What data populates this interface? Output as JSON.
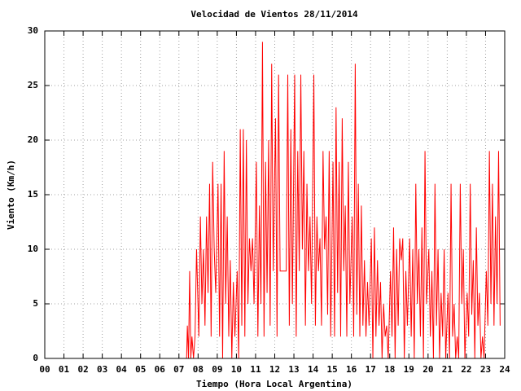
{
  "chart_data": {
    "type": "line",
    "title": "Velocidad de Vientos 28/11/2014",
    "xlabel": "Tiempo (Hora Local Argentina)",
    "ylabel": "Viento (Km/h)",
    "xlim": [
      0,
      24
    ],
    "ylim": [
      0,
      30
    ],
    "xticks": [
      {
        "value": 0,
        "label": "00"
      },
      {
        "value": 1,
        "label": "01"
      },
      {
        "value": 2,
        "label": "02"
      },
      {
        "value": 3,
        "label": "03"
      },
      {
        "value": 4,
        "label": "04"
      },
      {
        "value": 5,
        "label": "05"
      },
      {
        "value": 6,
        "label": "06"
      },
      {
        "value": 7,
        "label": "07"
      },
      {
        "value": 8,
        "label": "08"
      },
      {
        "value": 9,
        "label": "09"
      },
      10,
      11,
      12,
      13,
      14,
      15,
      16,
      17,
      18,
      19,
      20,
      21,
      22,
      23,
      24
    ],
    "yticks": [
      0,
      5,
      10,
      15,
      20,
      25,
      30
    ],
    "grid": true,
    "color": "#ff0000",
    "x": [
      0,
      7.4,
      7.44,
      7.5,
      7.56,
      7.62,
      7.68,
      7.76,
      7.84,
      7.92,
      8.04,
      8.12,
      8.2,
      8.28,
      8.36,
      8.44,
      8.52,
      8.6,
      8.68,
      8.76,
      8.84,
      8.92,
      9.04,
      9.12,
      9.2,
      9.28,
      9.36,
      9.44,
      9.52,
      9.6,
      9.68,
      9.76,
      9.84,
      9.92,
      10.04,
      10.12,
      10.2,
      10.28,
      10.36,
      10.44,
      10.52,
      10.6,
      10.68,
      10.76,
      10.84,
      10.92,
      11.04,
      11.12,
      11.2,
      11.28,
      11.36,
      11.44,
      11.52,
      11.6,
      11.68,
      11.76,
      11.84,
      11.92,
      12.04,
      12.12,
      12.2,
      12.28,
      12.36,
      12.44,
      12.52,
      12.6,
      12.68,
      12.76,
      12.84,
      12.92,
      13.04,
      13.12,
      13.2,
      13.28,
      13.36,
      13.44,
      13.52,
      13.6,
      13.68,
      13.76,
      13.84,
      13.92,
      14.04,
      14.12,
      14.2,
      14.28,
      14.36,
      14.44,
      14.52,
      14.6,
      14.68,
      14.76,
      14.84,
      14.92,
      15.04,
      15.12,
      15.2,
      15.28,
      15.36,
      15.44,
      15.52,
      15.6,
      15.68,
      15.76,
      15.84,
      15.92,
      16.04,
      16.12,
      16.2,
      16.28,
      16.36,
      16.44,
      16.52,
      16.6,
      16.68,
      16.76,
      16.84,
      16.92,
      17.04,
      17.12,
      17.2,
      17.28,
      17.36,
      17.44,
      17.52,
      17.6,
      17.68,
      17.76,
      17.84,
      17.92,
      18.04,
      18.12,
      18.2,
      18.28,
      18.36,
      18.44,
      18.52,
      18.6,
      18.68,
      18.76,
      18.84,
      18.92,
      19.04,
      19.12,
      19.2,
      19.28,
      19.36,
      19.44,
      19.52,
      19.6,
      19.68,
      19.76,
      19.84,
      19.92,
      20.04,
      20.12,
      20.2,
      20.28,
      20.36,
      20.44,
      20.52,
      20.6,
      20.68,
      20.76,
      20.84,
      20.92,
      21.04,
      21.12,
      21.2,
      21.28,
      21.36,
      21.44,
      21.52,
      21.6,
      21.68,
      21.76,
      21.84,
      21.92,
      22.04,
      22.12,
      22.2,
      22.28,
      22.36,
      22.44,
      22.52,
      22.6,
      22.68,
      22.76,
      22.84,
      22.92,
      23.04,
      23.12,
      23.2,
      23.28,
      23.36,
      23.44,
      23.52,
      23.6,
      23.68,
      23.76
    ],
    "values": [
      0,
      0,
      3,
      0,
      8,
      0,
      2,
      0,
      2,
      10,
      2,
      13,
      5,
      10,
      3,
      13,
      6,
      16,
      2,
      18,
      10,
      6,
      16,
      2,
      16,
      0,
      19,
      5,
      13,
      2,
      9,
      0,
      7,
      2,
      8,
      0,
      21,
      3,
      21,
      2,
      20,
      5,
      11,
      8,
      11,
      5,
      18,
      2,
      14,
      5,
      29,
      2,
      18,
      6,
      20,
      3,
      27,
      8,
      22,
      2,
      26,
      8,
      8,
      8,
      8,
      8,
      26,
      3,
      21,
      5,
      26,
      2,
      19,
      8,
      26,
      10,
      19,
      3,
      16,
      8,
      13,
      5,
      26,
      3,
      13,
      8,
      11,
      3,
      19,
      10,
      13,
      4,
      19,
      2,
      18,
      2,
      23,
      6,
      18,
      2,
      22,
      8,
      14,
      2,
      18,
      5,
      13,
      2,
      27,
      4,
      16,
      2,
      14,
      3,
      9,
      2,
      7,
      3,
      11,
      0,
      12,
      2,
      9,
      3,
      7,
      0,
      5,
      2,
      3,
      0,
      8,
      2,
      12,
      0,
      10,
      3,
      11,
      9,
      11,
      0,
      8,
      3,
      11,
      2,
      10,
      0,
      16,
      5,
      10,
      2,
      12,
      0,
      19,
      5,
      10,
      2,
      8,
      0,
      16,
      3,
      10,
      0,
      6,
      2,
      10,
      0,
      6,
      0,
      16,
      2,
      5,
      0,
      2,
      0,
      16,
      5,
      10,
      0,
      6,
      2,
      16,
      4,
      9,
      0,
      12,
      3,
      6,
      0,
      2,
      0,
      8,
      3,
      19,
      5,
      16,
      3,
      13,
      5,
      19,
      3
    ]
  }
}
